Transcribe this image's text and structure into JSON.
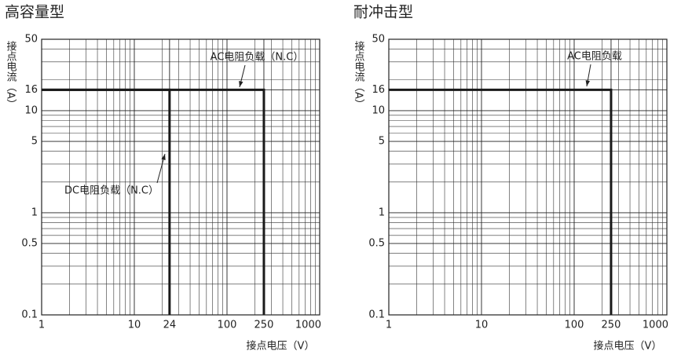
{
  "chart_data": [
    {
      "type": "line",
      "title": "高容量型",
      "xlabel": "接点电压（V）",
      "ylabel": "接点电流（A）",
      "log_x": true,
      "log_y": true,
      "xlim": [
        1,
        1000
      ],
      "ylim": [
        0.1,
        50
      ],
      "xticks": [
        1,
        10,
        24,
        100,
        250,
        1000
      ],
      "yticks": [
        0.1,
        0.5,
        1,
        5,
        10,
        16,
        50
      ],
      "xminor": [
        2,
        3,
        4,
        5,
        6,
        7,
        8,
        9,
        20,
        30,
        40,
        50,
        60,
        70,
        80,
        90,
        200,
        300,
        400,
        500,
        600,
        700,
        800,
        900
      ],
      "yminor": [
        0.2,
        0.3,
        0.4,
        0.6,
        0.7,
        0.8,
        0.9,
        2,
        3,
        4,
        6,
        7,
        8,
        9,
        20,
        30,
        40
      ],
      "series": [
        {
          "name": "AC电阻负载（N.C）",
          "color": "#1a1a1a",
          "x": [
            1,
            250,
            250
          ],
          "values": [
            16,
            16,
            0.1
          ]
        },
        {
          "name": "DC电阻负载（N.C）",
          "color": "#1a1a1a",
          "x": [
            1,
            24,
            24
          ],
          "values": [
            16,
            16,
            0.1
          ]
        }
      ]
    },
    {
      "type": "line",
      "title": "耐冲击型",
      "xlabel": "接点电压（V）",
      "ylabel": "接点电流（A）",
      "log_x": true,
      "log_y": true,
      "xlim": [
        1,
        1000
      ],
      "ylim": [
        0.1,
        50
      ],
      "xticks": [
        1,
        10,
        100,
        250,
        1000
      ],
      "yticks": [
        0.1,
        0.5,
        1,
        5,
        10,
        16,
        50
      ],
      "xminor": [
        2,
        3,
        4,
        5,
        6,
        7,
        8,
        9,
        20,
        30,
        40,
        50,
        60,
        70,
        80,
        90,
        200,
        300,
        400,
        500,
        600,
        700,
        800,
        900
      ],
      "yminor": [
        0.2,
        0.3,
        0.4,
        0.6,
        0.7,
        0.8,
        0.9,
        2,
        3,
        4,
        6,
        7,
        8,
        9,
        20,
        30,
        40
      ],
      "series": [
        {
          "name": "AC电阻负载",
          "color": "#1a1a1a",
          "x": [
            1,
            250,
            250
          ],
          "values": [
            16,
            16,
            0.1
          ]
        }
      ]
    }
  ]
}
